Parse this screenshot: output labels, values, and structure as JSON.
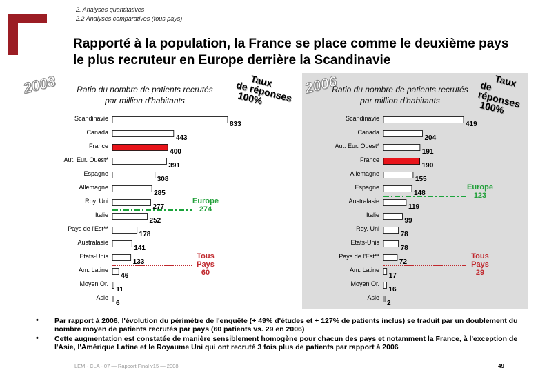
{
  "header": {
    "breadcrumb_line1": "2. Analyses quantitatives",
    "breadcrumb_line2": "2.2 Analyses comparatives (tous pays)",
    "title": "Rapporté à la population, la France se place comme le deuxième pays le plus recruteur en Europe derrière la Scandinavie"
  },
  "chart_data": [
    {
      "type": "bar",
      "year": "2008",
      "title": "Ratio du nombre de patients recrutés par million d'habitants",
      "response_rate_label": [
        "Taux",
        "de réponses",
        "100%"
      ],
      "categories": [
        "Scandinavie",
        "Canada",
        "France",
        "Aut. Eur. Ouest*",
        "Espagne",
        "Allemagne",
        "Roy. Uni",
        "Italie",
        "Pays de l'Est**",
        "Australasie",
        "Etats-Unis",
        "Am. Latine",
        "Moyen Or.",
        "Asie"
      ],
      "values": [
        833,
        443,
        400,
        391,
        308,
        285,
        277,
        252,
        178,
        141,
        133,
        46,
        11,
        6
      ],
      "highlight": "France",
      "reference_lines": [
        {
          "label_lines": [
            "Europe",
            "274"
          ],
          "value": 274,
          "color": "#1aa33a",
          "style": "dash-dot",
          "text_color": "#22a03a"
        },
        {
          "label_lines": [
            "Tous",
            "Pays",
            "60"
          ],
          "value": 60,
          "color": "#c0292e",
          "style": "dotted",
          "text_color": "#c0292e"
        }
      ],
      "xlim": [
        0,
        833
      ]
    },
    {
      "type": "bar",
      "year": "2006",
      "title": "Ratio du nombre de patients recrutés par million d'habitants",
      "response_rate_label": [
        "Taux",
        "de réponses",
        "100%"
      ],
      "categories": [
        "Scandinavie",
        "Canada",
        "Aut. Eur. Ouest*",
        "France",
        "Allemagne",
        "Espagne",
        "Australasie",
        "Italie",
        "Roy. Uni",
        "Etats-Unis",
        "Pays de l'Est**",
        "Am. Latine",
        "Moyen Or.",
        "Asie"
      ],
      "values": [
        419,
        204,
        191,
        190,
        155,
        148,
        119,
        99,
        78,
        78,
        72,
        17,
        16,
        2
      ],
      "highlight": "France",
      "reference_lines": [
        {
          "label_lines": [
            "Europe",
            "123"
          ],
          "value": 123,
          "color": "#1aa33a",
          "style": "dash-dot",
          "text_color": "#22a03a"
        },
        {
          "label_lines": [
            "Tous",
            "Pays",
            "29"
          ],
          "value": 29,
          "color": "#c0292e",
          "style": "dotted",
          "text_color": "#c0292e"
        }
      ],
      "xlim": [
        0,
        419
      ]
    }
  ],
  "colors": {
    "bar": "#ffffff",
    "bar_border": "#000000",
    "highlight": "#e8141a",
    "panel_bg": "#dcdcdc"
  },
  "bullets": [
    "Par rapport à 2006, l'évolution du périmètre de l'enquête (+ 49% d'études et + 127% de patients inclus) se traduit par un doublement du nombre moyen de patients recrutés par pays (60 patients vs. 29 en 2006)",
    "Cette augmentation est constatée de manière sensiblement homogène pour chacun des pays et notamment la France, à l'exception de l'Asie, l'Amérique Latine et le Royaume Uni qui ont recruté 3 fois plus de patients par rapport à 2006"
  ],
  "footer": {
    "text": "LEM - CLA - 07 — Rapport Final v15 — 2008",
    "page": "49"
  }
}
